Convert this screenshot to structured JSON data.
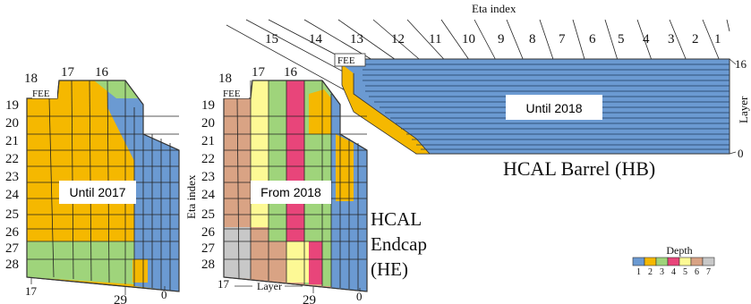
{
  "eta_index_label": "Eta index",
  "barrel": {
    "eta_numbers": [
      "15",
      "14",
      "13",
      "12",
      "11",
      "10",
      "9",
      "8",
      "7",
      "6",
      "5",
      "4",
      "3",
      "2",
      "1"
    ],
    "title": "HCAL  Barrel (HB)",
    "period_label": "Until 2018",
    "fee_label": "FEE",
    "layer_axis_label": "Layer",
    "layer_top": "16",
    "layer_bottom": "0"
  },
  "endcap_left": {
    "period_label": "Until 2017",
    "fee_label": "FEE",
    "top_labels": [
      "18",
      "17",
      "16"
    ],
    "row_labels": [
      "19",
      "20",
      "21",
      "22",
      "23",
      "24",
      "25",
      "26",
      "27",
      "28"
    ],
    "bottom_left": "17",
    "bottom_mid": "29",
    "bottom_right": "0"
  },
  "endcap_right": {
    "period_label": "From 2018",
    "fee_label": "FEE",
    "top_labels": [
      "18",
      "17",
      "16"
    ],
    "row_labels": [
      "19",
      "20",
      "21",
      "22",
      "23",
      "24",
      "25",
      "26",
      "27",
      "28"
    ],
    "bottom_left": "17",
    "layer_label": "Layer",
    "bottom_mid": "29",
    "bottom_right": "0",
    "eta_axis_label": "Eta index"
  },
  "endcap_title": [
    "HCAL",
    "Endcap",
    "(HE)"
  ],
  "depth_legend": {
    "title": "Depth",
    "items": [
      {
        "label": "1",
        "color": "#6b9ad2"
      },
      {
        "label": "2",
        "color": "#f5b800"
      },
      {
        "label": "3",
        "color": "#9fd47b"
      },
      {
        "label": "4",
        "color": "#e8457a"
      },
      {
        "label": "5",
        "color": "#fdf995"
      },
      {
        "label": "6",
        "color": "#d9a384"
      },
      {
        "label": "7",
        "color": "#c8c8c8"
      }
    ]
  }
}
